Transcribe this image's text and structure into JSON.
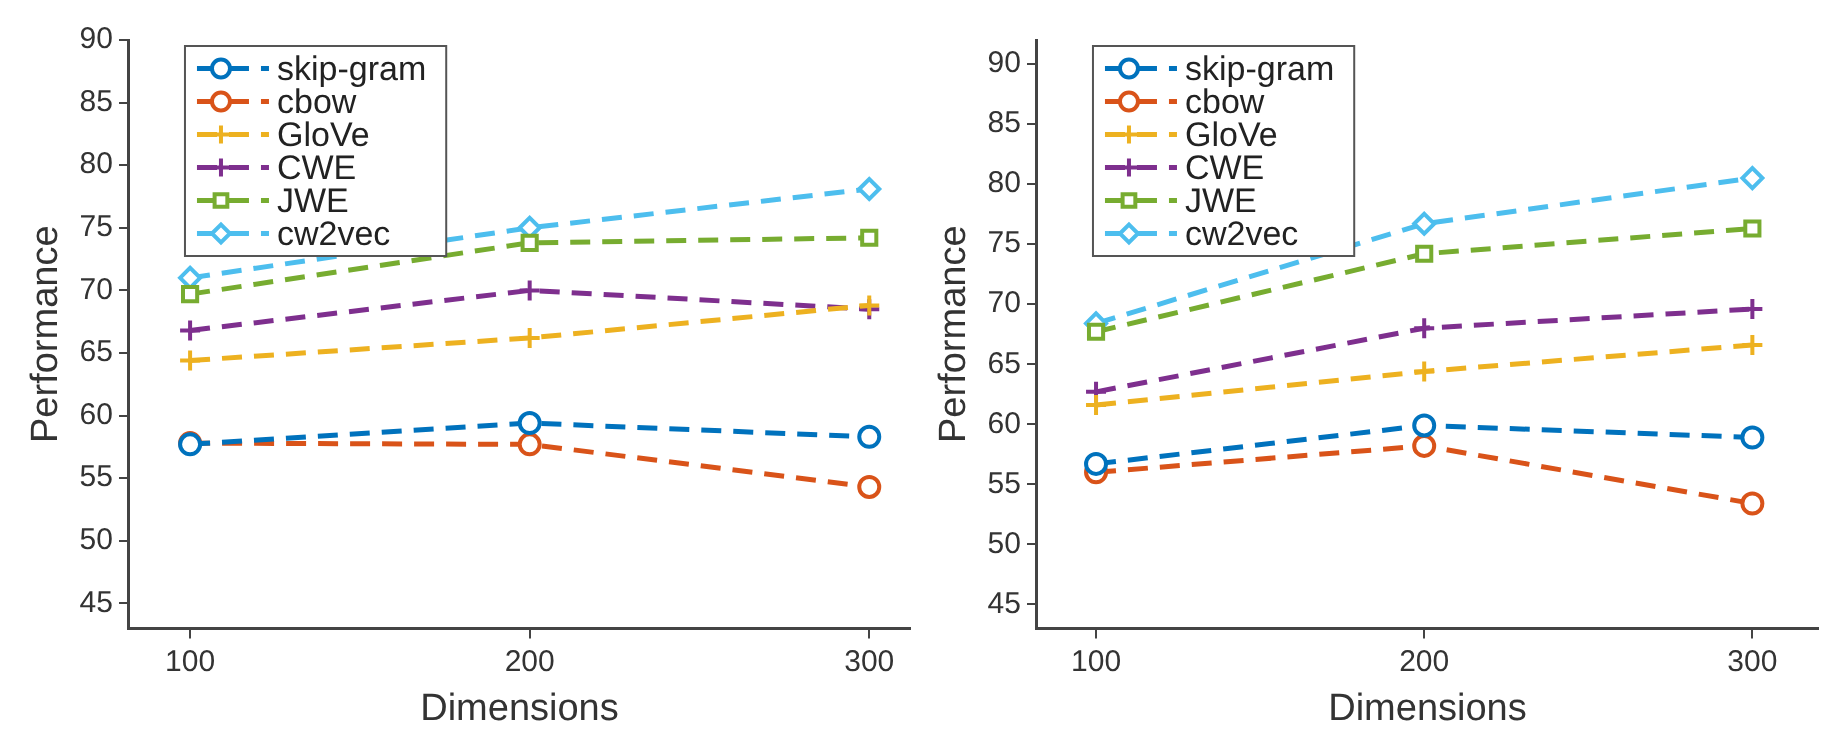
{
  "chart_data": [
    {
      "type": "line",
      "xlabel": "Dimensions",
      "ylabel": "Performance",
      "x": [
        100,
        200,
        300
      ],
      "xlim": [
        82,
        312
      ],
      "xticks": [
        100,
        200,
        300
      ],
      "ylim": [
        43,
        90
      ],
      "yticks": [
        45,
        50,
        55,
        60,
        65,
        70,
        75,
        80,
        85,
        90
      ],
      "grid": false,
      "legend": "top left",
      "line_style": "dashed",
      "series": [
        {
          "name": "skip-gram",
          "color": "#0072bd",
          "marker": "circle",
          "values": [
            57.7,
            59.4,
            58.3
          ]
        },
        {
          "name": "cbow",
          "color": "#d95319",
          "marker": "circle",
          "values": [
            57.8,
            57.7,
            54.3
          ]
        },
        {
          "name": "GloVe",
          "color": "#edb120",
          "marker": "cross",
          "values": [
            64.4,
            66.2,
            68.8
          ]
        },
        {
          "name": "CWE",
          "color": "#7e2f8e",
          "marker": "cross",
          "values": [
            66.8,
            70.0,
            68.5
          ]
        },
        {
          "name": "JWE",
          "color": "#77ac30",
          "marker": "square",
          "values": [
            69.7,
            73.8,
            74.2
          ]
        },
        {
          "name": "cw2vec",
          "color": "#4dbeee",
          "marker": "diamond",
          "values": [
            71.0,
            75.0,
            78.1
          ]
        }
      ]
    },
    {
      "type": "line",
      "xlabel": "Dimensions",
      "ylabel": "Performance",
      "x": [
        100,
        200,
        300
      ],
      "xlim": [
        82,
        320
      ],
      "xticks": [
        100,
        200,
        300
      ],
      "ylim": [
        43,
        92
      ],
      "yticks": [
        45,
        50,
        55,
        60,
        65,
        70,
        75,
        80,
        85,
        90
      ],
      "grid": false,
      "legend": "top left",
      "line_style": "dashed",
      "series": [
        {
          "name": "skip-gram",
          "color": "#0072bd",
          "marker": "circle",
          "values": [
            56.7,
            59.9,
            58.9
          ]
        },
        {
          "name": "cbow",
          "color": "#d95319",
          "marker": "circle",
          "values": [
            56.0,
            58.2,
            53.4
          ]
        },
        {
          "name": "GloVe",
          "color": "#edb120",
          "marker": "cross",
          "values": [
            61.6,
            64.4,
            66.6
          ]
        },
        {
          "name": "CWE",
          "color": "#7e2f8e",
          "marker": "cross",
          "values": [
            62.7,
            68.0,
            69.6
          ]
        },
        {
          "name": "JWE",
          "color": "#77ac30",
          "marker": "square",
          "values": [
            67.7,
            74.2,
            76.3
          ]
        },
        {
          "name": "cw2vec",
          "color": "#4dbeee",
          "marker": "diamond",
          "values": [
            68.4,
            76.7,
            80.5
          ]
        }
      ]
    }
  ]
}
